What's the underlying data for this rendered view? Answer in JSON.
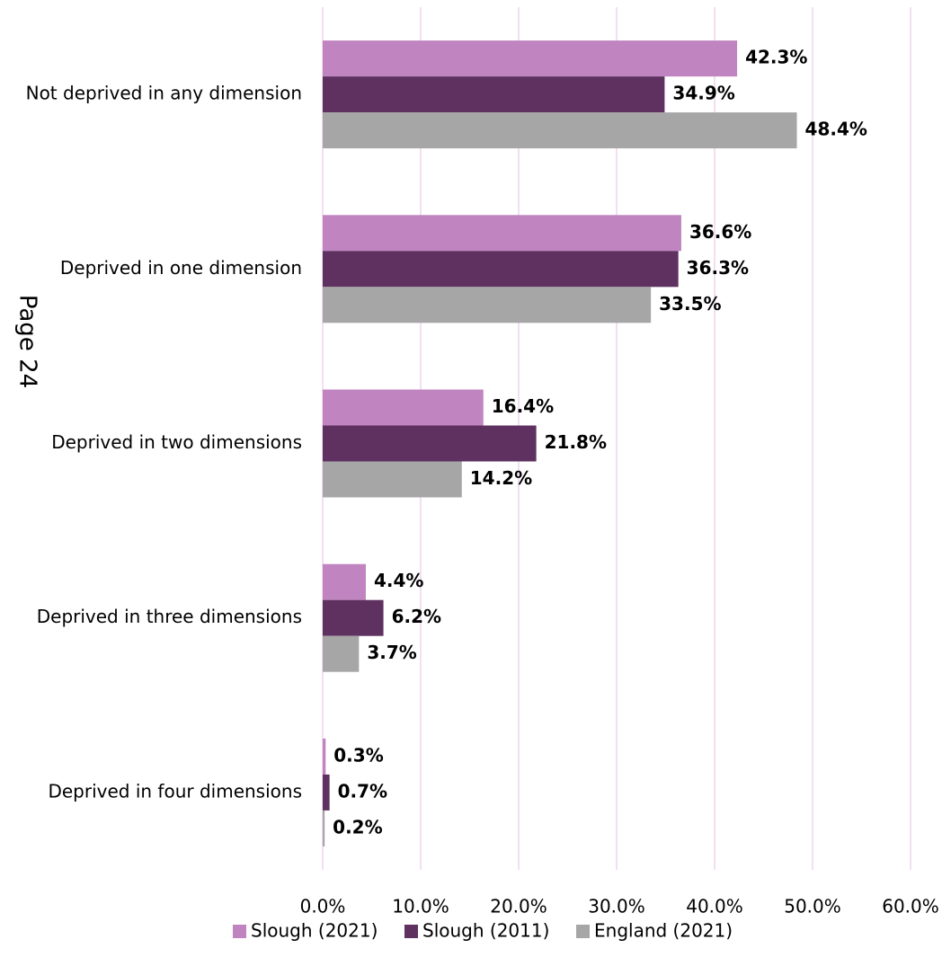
{
  "chart_data": {
    "type": "bar",
    "orientation": "horizontal",
    "categories": [
      "Not deprived in any dimension",
      "Deprived in one dimension",
      "Deprived in two dimensions",
      "Deprived in three dimensions",
      "Deprived in four dimensions"
    ],
    "series": [
      {
        "name": "Slough (2021)",
        "color": "#c084c0",
        "values": [
          42.3,
          36.6,
          16.4,
          4.4,
          0.3
        ],
        "value_labels": [
          "42.3%",
          "36.6%",
          "16.4%",
          "4.4%",
          "0.3%"
        ]
      },
      {
        "name": "Slough (2011)",
        "color": "#5e3160",
        "values": [
          34.9,
          36.3,
          21.8,
          6.2,
          0.7
        ],
        "value_labels": [
          "34.9%",
          "36.3%",
          "21.8%",
          "6.2%",
          "0.7%"
        ]
      },
      {
        "name": "England (2021)",
        "color": "#a6a6a6",
        "values": [
          48.4,
          33.5,
          14.2,
          3.7,
          0.2
        ],
        "value_labels": [
          "48.4%",
          "33.5%",
          "14.2%",
          "3.7%",
          "0.2%"
        ]
      }
    ],
    "xlim": [
      0,
      60
    ],
    "xticks": [
      {
        "value": 0,
        "label": "0.0%"
      },
      {
        "value": 10,
        "label": "10.0%"
      },
      {
        "value": 20,
        "label": "20.0%"
      },
      {
        "value": 30,
        "label": "30.0%"
      },
      {
        "value": 40,
        "label": "40.0%"
      },
      {
        "value": 50,
        "label": "50.0%"
      },
      {
        "value": 60,
        "label": "60.0%"
      }
    ],
    "grid": true,
    "grid_color": "#f2dff2",
    "legend": "bottom",
    "annotation": "Page 24"
  }
}
